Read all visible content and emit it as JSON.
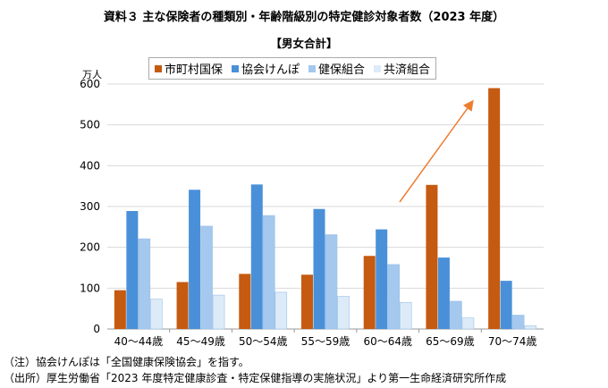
{
  "chart_data": {
    "type": "bar",
    "title": "資料３ 主な保険者の種類別・年齢階級別の特定健診対象者数（2023 年度）",
    "subtitle": "【男女合計】",
    "ylabel": "万人",
    "ylim": [
      0,
      600
    ],
    "yticks": [
      0,
      100,
      200,
      300,
      400,
      500,
      600
    ],
    "categories": [
      "40～44歳",
      "45～49歳",
      "50～54歳",
      "55～59歳",
      "60～64歳",
      "65～69歳",
      "70～74歳"
    ],
    "series": [
      {
        "name": "市町村国保",
        "color": "#c55a11",
        "values": [
          95,
          115,
          135,
          133,
          179,
          353,
          590
        ]
      },
      {
        "name": "協会けんぽ",
        "color": "#4a90d9",
        "values": [
          289,
          341,
          354,
          294,
          244,
          175,
          118
        ]
      },
      {
        "name": "健保組合",
        "color": "#a4c8ee",
        "values": [
          221,
          252,
          278,
          231,
          158,
          68,
          34
        ]
      },
      {
        "name": "共済組合",
        "color": "#ddebf8",
        "values": [
          73,
          83,
          90,
          80,
          65,
          27,
          8
        ]
      }
    ],
    "grid": true,
    "legend": "top",
    "annotation": "arrow"
  },
  "notes": [
    "（注）協会けんぽは「全国健康保険協会」を指す。",
    "（出所）厚生労働省「2023 年度特定健康診査・特定保健指導の実施状況」より第一生命経済研究所作成"
  ]
}
